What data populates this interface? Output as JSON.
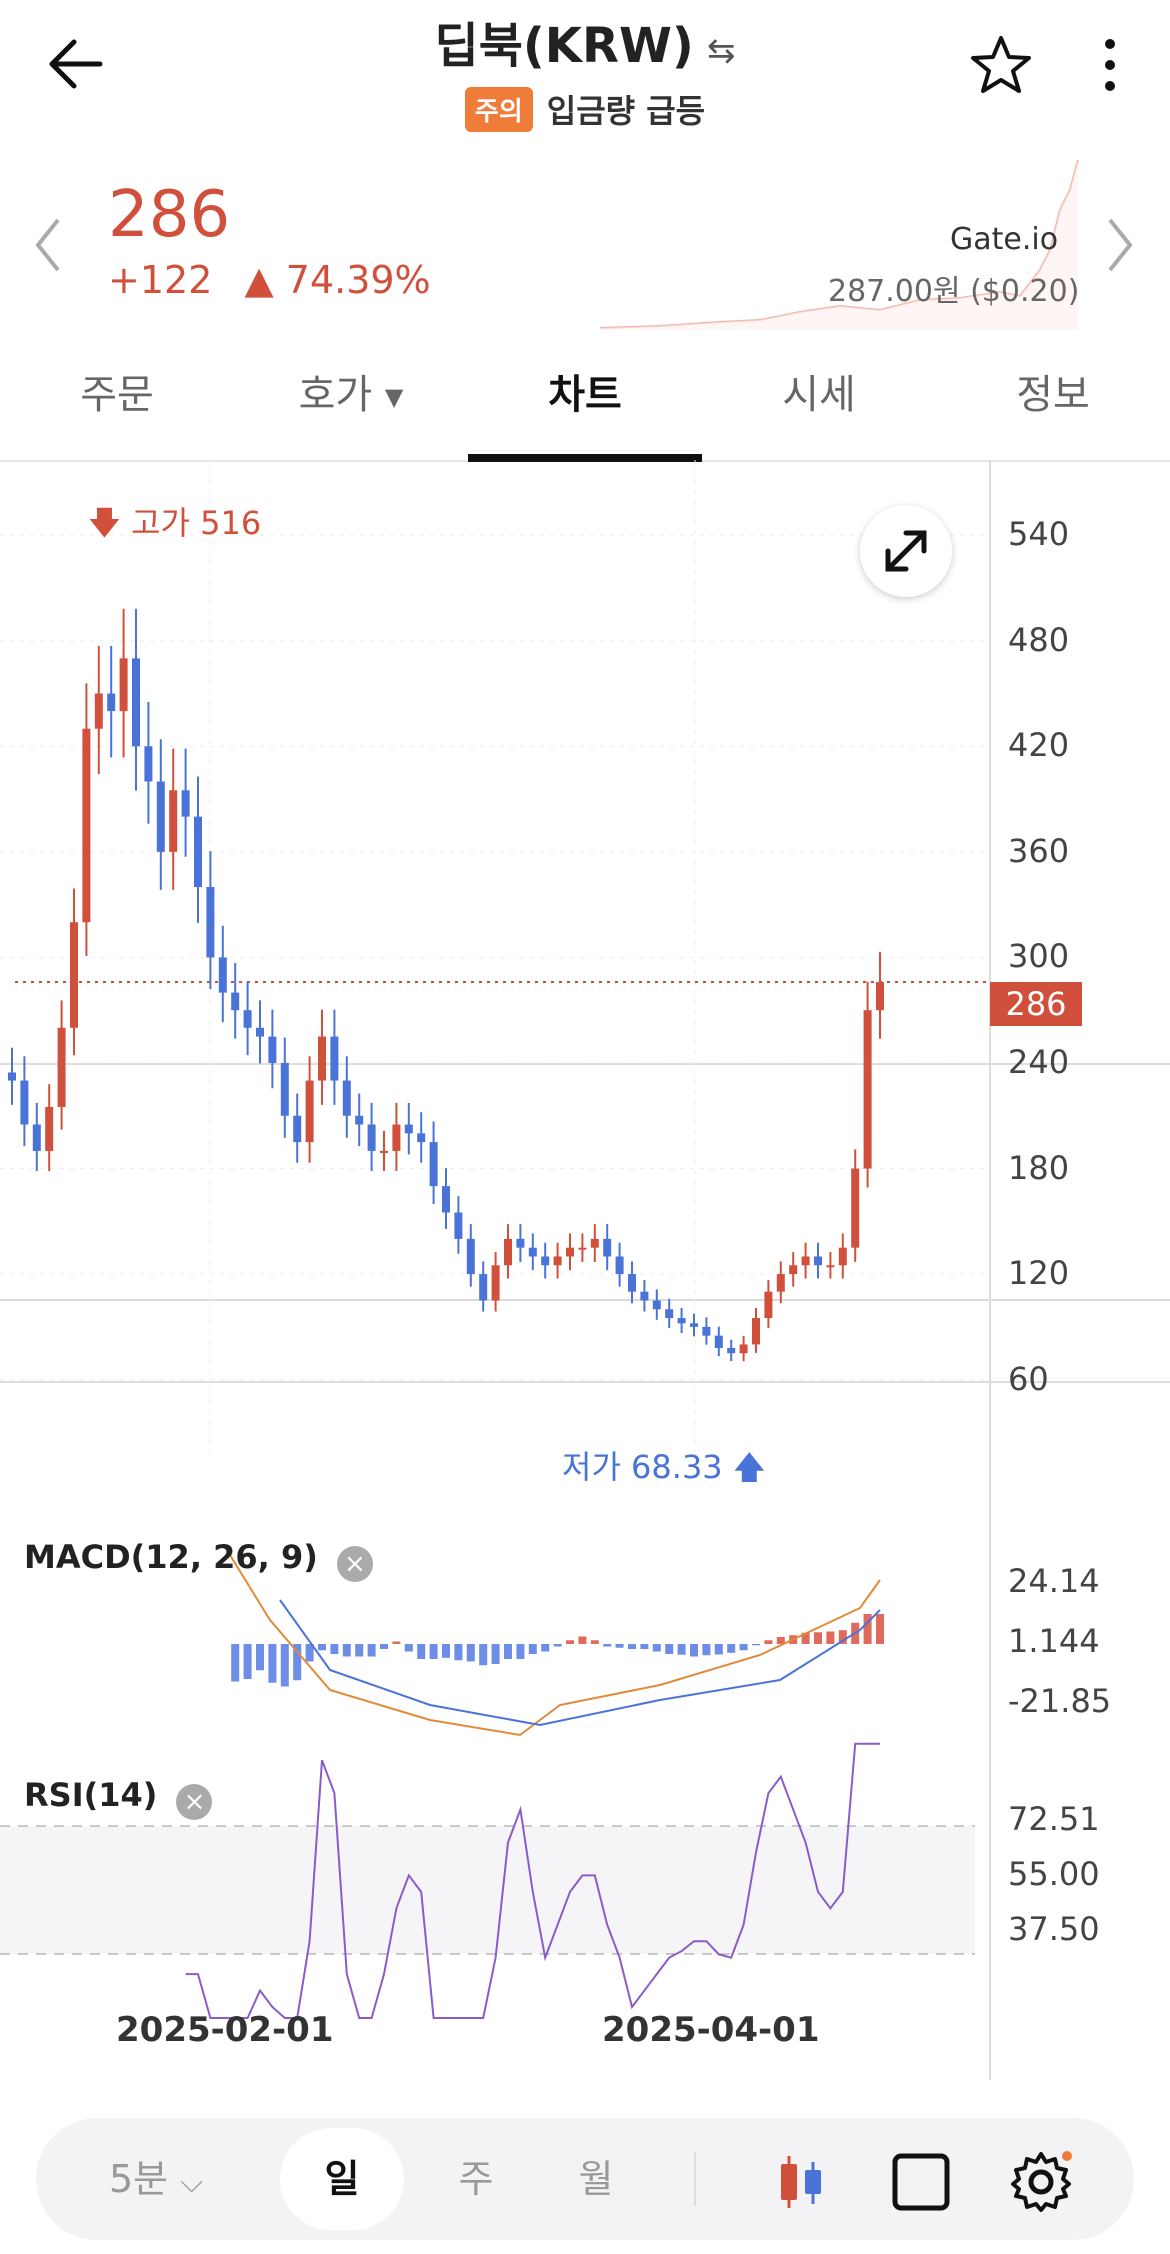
{
  "header": {
    "title": "딥북(KRW)",
    "swap_icon": "⇆",
    "badge": "주의",
    "alert": "입금량 급등"
  },
  "price": {
    "current": "286",
    "change": "+122",
    "change_pct": "▲ 74.39%",
    "exchange": "Gate.io",
    "exchange_price": "287.00원 ($0.20)"
  },
  "tabs": [
    {
      "label": "주문"
    },
    {
      "label": "호가"
    },
    {
      "label": "차트"
    },
    {
      "label": "시세"
    },
    {
      "label": "정보"
    }
  ],
  "colors": {
    "up": "#d0503b",
    "down": "#4a73d8",
    "accent": "#f07c3a"
  },
  "chart_data": {
    "type": "candlestick",
    "high_label": "고가 516",
    "low_label": "저가 68.33",
    "current_price_label": "286",
    "y_ticks": [
      "540",
      "480",
      "420",
      "360",
      "300",
      "240",
      "180",
      "120",
      "60"
    ],
    "ylim": [
      20,
      560
    ],
    "x_ticks": [
      "2025-02-01",
      "2025-04-01"
    ],
    "closes": [
      230,
      205,
      190,
      215,
      260,
      320,
      430,
      450,
      440,
      470,
      420,
      400,
      360,
      395,
      380,
      340,
      300,
      280,
      270,
      260,
      255,
      240,
      210,
      195,
      230,
      255,
      230,
      210,
      205,
      190,
      190,
      205,
      200,
      195,
      170,
      155,
      140,
      120,
      105,
      125,
      140,
      135,
      130,
      125,
      130,
      135,
      135,
      140,
      130,
      120,
      110,
      105,
      100,
      95,
      92,
      90,
      85,
      78,
      75,
      80,
      95,
      110,
      120,
      125,
      130,
      125,
      125,
      135,
      180,
      270,
      286
    ],
    "macd": {
      "label": "MACD(12, 26, 9)",
      "ticks": [
        "24.14",
        "1.144",
        "-21.85"
      ]
    },
    "rsi": {
      "label": "RSI(14)",
      "ticks": [
        "72.51",
        "55.00",
        "37.50"
      ]
    }
  },
  "bottom_bar": {
    "interval": "5분",
    "day": "일",
    "week": "주",
    "month": "월"
  }
}
